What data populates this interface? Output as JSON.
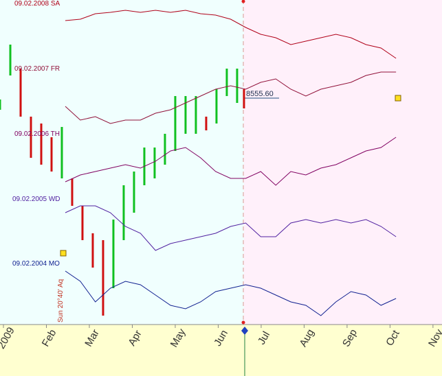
{
  "chart_data": {
    "type": "line",
    "xticks": [
      {
        "value": 0,
        "label": "2009"
      },
      {
        "value": 1,
        "label": "Feb"
      },
      {
        "value": 2,
        "label": "Mar"
      },
      {
        "value": 3,
        "label": "Apr"
      },
      {
        "value": 4,
        "label": "May"
      },
      {
        "value": 5,
        "label": "Jun"
      },
      {
        "value": 6,
        "label": "Jul"
      },
      {
        "value": 7,
        "label": "Aug"
      },
      {
        "value": 8,
        "label": "Sep"
      },
      {
        "value": 9,
        "label": "Oct"
      },
      {
        "value": 10,
        "label": "Nov"
      }
    ],
    "xlim": [
      -0.08,
      10.21
    ],
    "ylim": [
      0,
      473
    ],
    "x": [
      1.44,
      1.79,
      2.14,
      2.49,
      2.84,
      3.19,
      3.54,
      3.89,
      4.24,
      4.59,
      4.94,
      5.29,
      5.64,
      5.99,
      6.34,
      6.69,
      7.04,
      7.39,
      7.74,
      8.09,
      8.44,
      8.79,
      9.14
    ],
    "series": [
      {
        "name": "09.02.2008 SA",
        "color": "#b00018",
        "values": [
          443,
          445,
          453,
          455,
          458,
          455,
          458,
          455,
          458,
          453,
          451,
          445,
          433,
          423,
          418,
          408,
          413,
          418,
          423,
          418,
          408,
          403,
          388
        ]
      },
      {
        "name": "09.02.2007 FR",
        "color": "#901038",
        "values": [
          318,
          298,
          303,
          293,
          298,
          298,
          308,
          313,
          323,
          333,
          343,
          348,
          343,
          353,
          358,
          343,
          333,
          343,
          348,
          353,
          363,
          368,
          368
        ]
      },
      {
        "name": "09.02.2006 TH",
        "color": "#800060",
        "values": [
          208,
          218,
          223,
          228,
          233,
          228,
          238,
          253,
          258,
          243,
          223,
          213,
          213,
          223,
          203,
          223,
          218,
          228,
          233,
          243,
          253,
          258,
          273
        ]
      },
      {
        "name": "09.02.2005 WD",
        "color": "#5020a0",
        "values": [
          163,
          173,
          173,
          163,
          143,
          133,
          108,
          118,
          123,
          128,
          133,
          143,
          148,
          128,
          128,
          148,
          153,
          148,
          153,
          148,
          153,
          143,
          128
        ]
      },
      {
        "name": "09.02.2004 MO",
        "color": "#102090",
        "values": [
          78,
          63,
          33,
          53,
          63,
          58,
          43,
          28,
          23,
          33,
          48,
          53,
          58,
          53,
          43,
          33,
          28,
          13,
          33,
          48,
          43,
          28,
          38
        ]
      }
    ],
    "candles": {
      "x": [
        -0.08,
        0.16,
        0.4,
        0.64,
        0.88,
        1.12,
        1.36,
        1.6,
        1.84,
        2.08,
        2.32,
        2.56,
        2.8,
        3.04,
        3.28,
        3.52,
        3.76,
        4.0,
        4.24,
        4.48,
        4.72,
        4.96,
        5.2,
        5.44,
        5.6
      ],
      "high": [
        328,
        408,
        373,
        303,
        293,
        273,
        288,
        213,
        173,
        133,
        123,
        153,
        203,
        223,
        258,
        258,
        278,
        333,
        333,
        333,
        303,
        343,
        373,
        373,
        343
      ],
      "low": [
        313,
        363,
        303,
        243,
        233,
        223,
        213,
        173,
        123,
        83,
        13,
        53,
        123,
        163,
        203,
        213,
        233,
        253,
        278,
        278,
        283,
        293,
        333,
        323,
        315
      ]
    },
    "last_price_label": "8555.60",
    "annotation": "Sun 20°40' Aq"
  }
}
